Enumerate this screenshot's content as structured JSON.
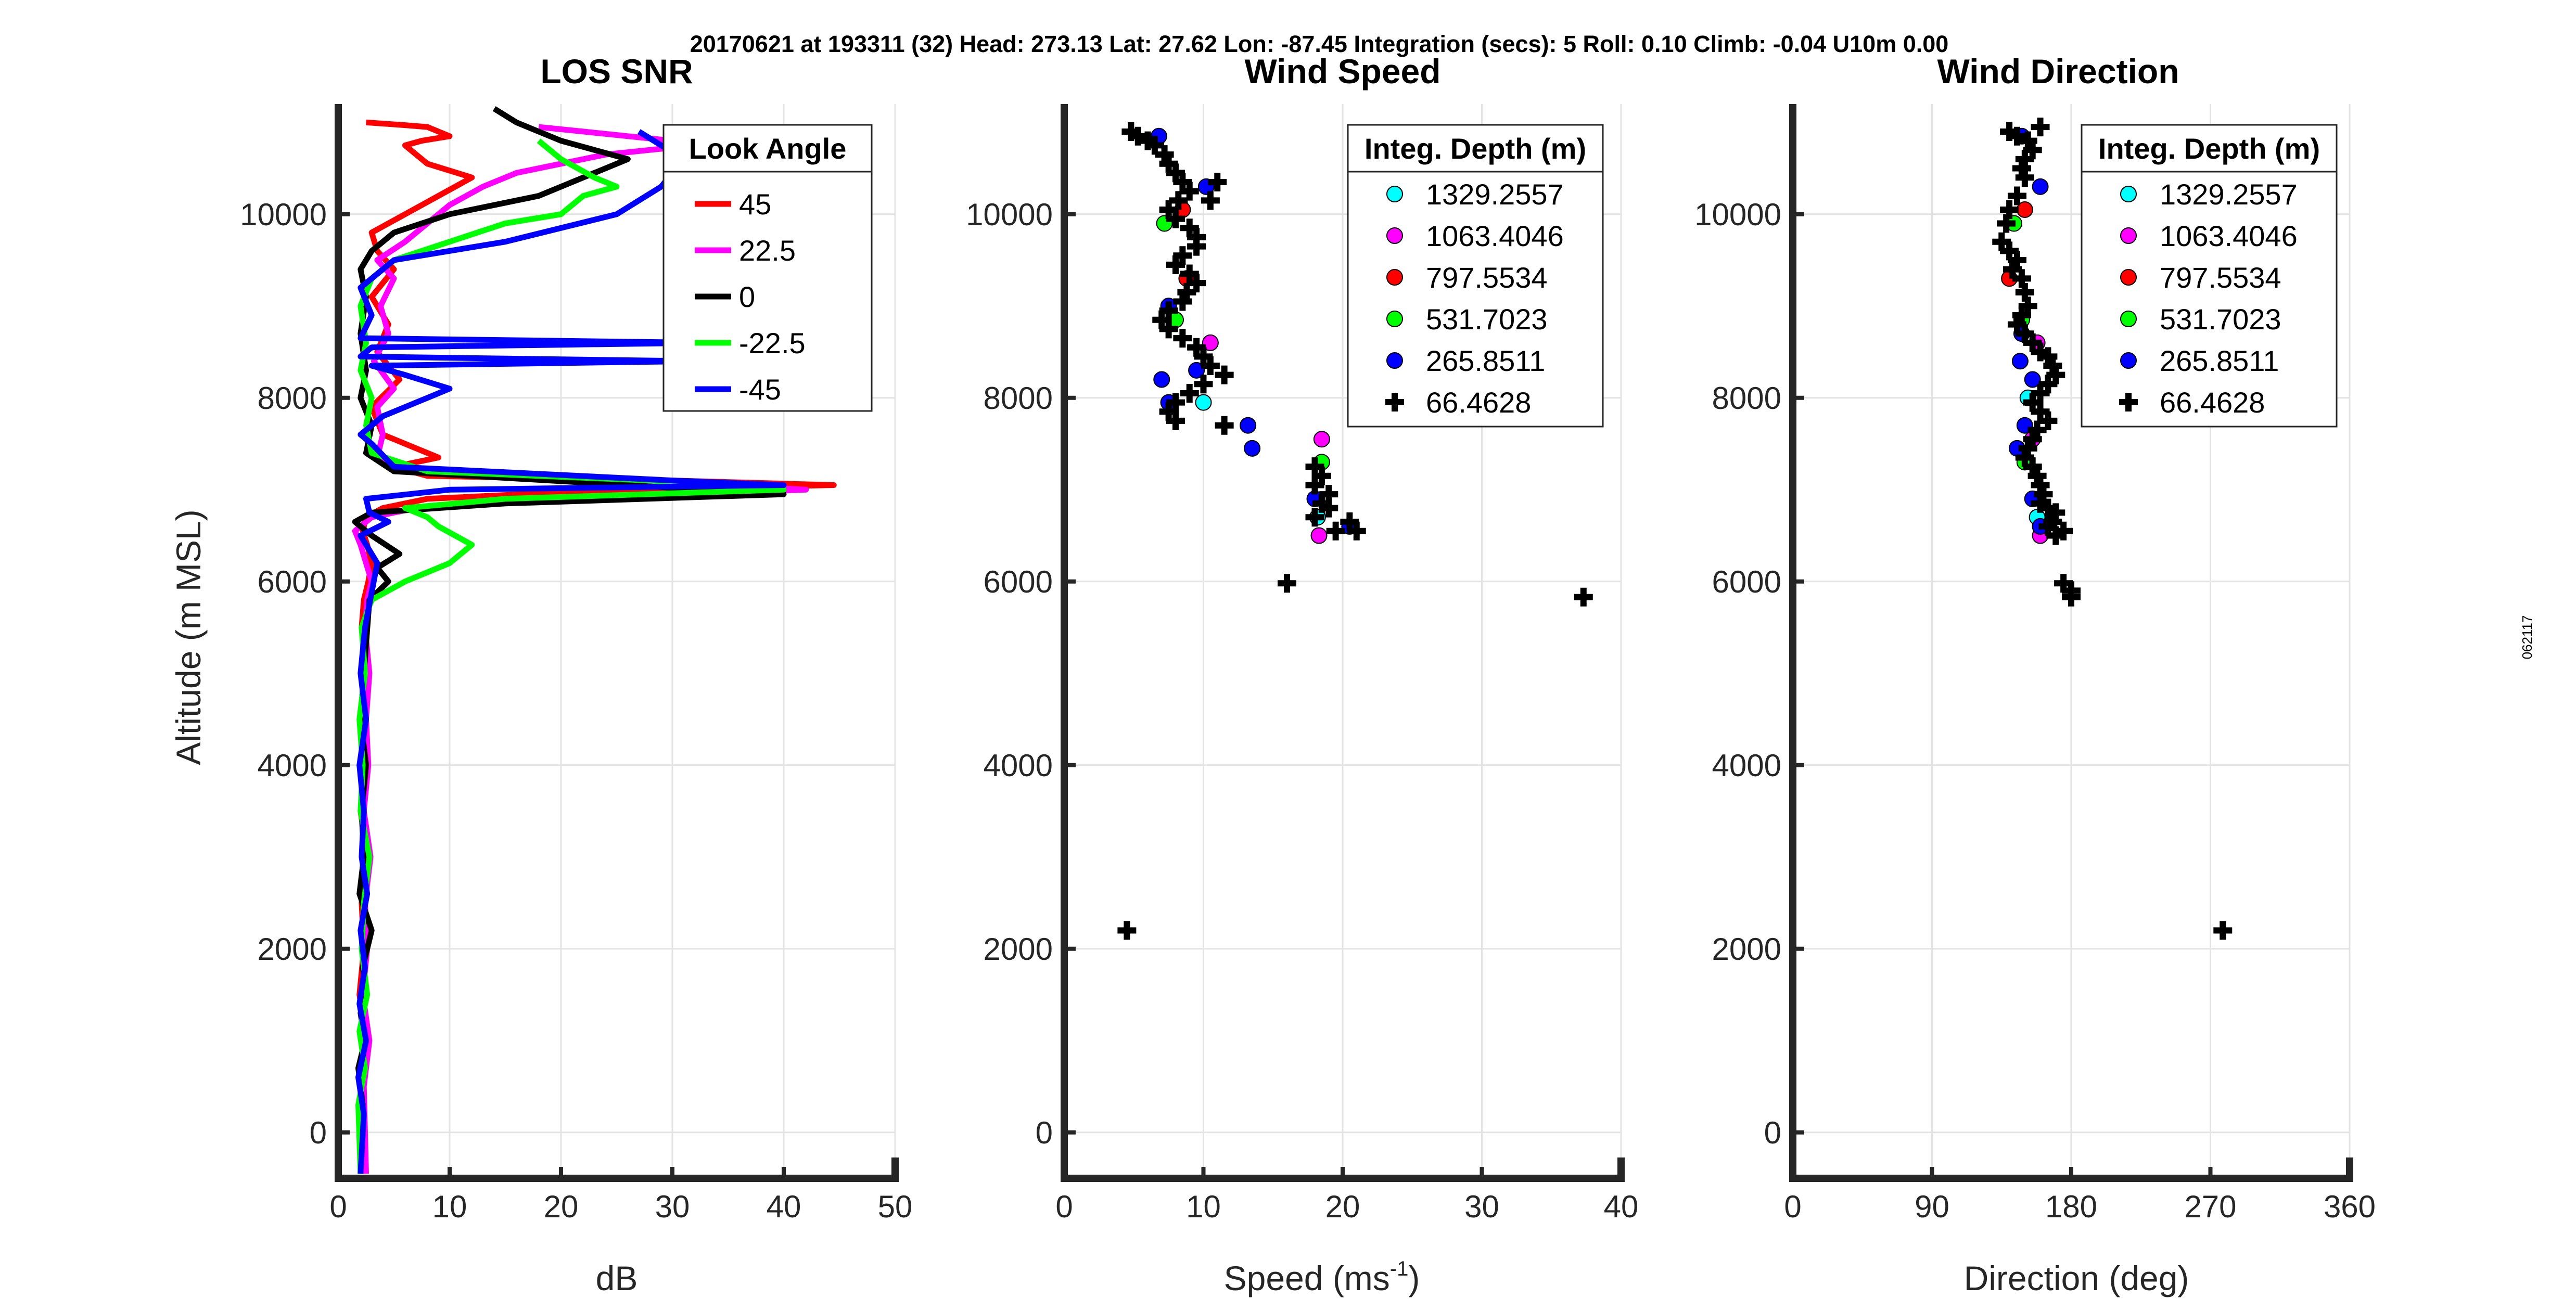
{
  "figure": {
    "header": "20170621 at 193311 (32)  Head: 273.13  Lat: 27.62  Lon: -87.45  Integration (secs): 5  Roll: 0.10  Climb: -0.04  U10m 0.00",
    "side_label": "062117"
  },
  "chart_data": [
    {
      "id": "snr",
      "type": "line",
      "title": "LOS SNR",
      "xlabel": "dB",
      "ylabel": "Altitude (m MSL)",
      "xlim": [
        0,
        50
      ],
      "ylim": [
        -500,
        11200
      ],
      "xticks": [
        0,
        10,
        20,
        30,
        40,
        50
      ],
      "yticks": [
        0,
        2000,
        4000,
        6000,
        8000,
        10000
      ],
      "grid": true,
      "legend": {
        "title": "Look Angle",
        "placement": "top-right"
      },
      "series": [
        {
          "name": "45",
          "color": "#ff0000",
          "x": [
            2.2,
            2.0,
            2.5,
            1.9,
            2.3,
            2.1,
            2.6,
            2.0,
            2.4,
            2.2,
            2.5,
            2.1,
            2.3,
            2.7,
            3.0,
            2.6,
            2.2,
            2.5,
            4.0,
            8.0,
            25.0,
            44.5,
            30.0,
            8.0,
            5.0,
            9.0,
            4.0,
            3.0,
            5.5,
            3.5,
            4.5,
            3.0,
            5.0,
            3.5,
            3.0,
            6.0,
            9.0,
            12.0,
            8.0,
            7.0,
            6.0,
            7.5,
            10.0,
            9.0,
            8.0,
            6.0,
            2.5
          ],
          "y": [
            -450,
            500,
            1000,
            1500,
            2000,
            2500,
            3000,
            3500,
            4000,
            4500,
            5000,
            5500,
            5800,
            6000,
            6200,
            6400,
            6550,
            6700,
            6800,
            6900,
            7000,
            7050,
            7100,
            7150,
            7250,
            7350,
            7600,
            7900,
            8200,
            8500,
            8800,
            9100,
            9400,
            9600,
            9800,
            10000,
            10200,
            10400,
            10550,
            10650,
            10750,
            10800,
            10850,
            10900,
            10950,
            10970,
            11000
          ]
        },
        {
          "name": "22.5",
          "color": "#ff00ff",
          "x": [
            2.5,
            2.3,
            2.8,
            2.2,
            2.6,
            2.4,
            2.9,
            2.3,
            2.7,
            2.5,
            2.8,
            2.4,
            2.6,
            3.0,
            2.5,
            2.0,
            1.5,
            3.0,
            7.0,
            20.0,
            42.0,
            28.0,
            6.0,
            3.5,
            4.0,
            3.5,
            5.0,
            3.2,
            4.5,
            3.8,
            5.0,
            3.5,
            6.0,
            8.0,
            10.0,
            13.0,
            16.0,
            20.0,
            24.0,
            28.0,
            32.0,
            30.0,
            26.0,
            22.0,
            18.0
          ],
          "y": [
            -450,
            500,
            1000,
            1500,
            2000,
            2500,
            3000,
            3500,
            4000,
            4500,
            5000,
            5500,
            5800,
            6000,
            6200,
            6400,
            6550,
            6700,
            6800,
            6900,
            7000,
            7100,
            7200,
            7350,
            7600,
            7900,
            8100,
            8400,
            8700,
            9000,
            9300,
            9500,
            9700,
            9900,
            10100,
            10300,
            10450,
            10550,
            10650,
            10700,
            10750,
            10800,
            10850,
            10900,
            10950
          ]
        },
        {
          "name": "0",
          "color": "#000000",
          "x": [
            2.0,
            2.2,
            1.8,
            2.4,
            2.0,
            2.6,
            2.2,
            3.0,
            1.9,
            2.3,
            2.1,
            2.5,
            2.0,
            2.3,
            2.8,
            4.5,
            3.5,
            5.5,
            3.0,
            1.5,
            3.0,
            15.0,
            40.0,
            26.0,
            5.0,
            2.5,
            3.0,
            2.0,
            2.5,
            2.0,
            2.5,
            2.0,
            3.0,
            5.0,
            10.0,
            18.0,
            22.0,
            26.0,
            20.0,
            16.0,
            14.0
          ],
          "y": [
            -450,
            300,
            700,
            1000,
            1300,
            1500,
            1800,
            2200,
            2600,
            3000,
            3500,
            4000,
            4500,
            5000,
            5800,
            6000,
            6150,
            6300,
            6500,
            6650,
            6750,
            6850,
            6950,
            7050,
            7200,
            7400,
            7700,
            8000,
            8300,
            8700,
            9100,
            9400,
            9600,
            9800,
            10000,
            10200,
            10400,
            10600,
            10800,
            11000,
            11150
          ]
        },
        {
          "name": "-22.5",
          "color": "#00ff00",
          "x": [
            2.0,
            1.8,
            2.4,
            1.9,
            2.6,
            2.1,
            2.3,
            2.8,
            2.0,
            2.2,
            1.9,
            2.4,
            2.1,
            3.0,
            6.0,
            10.0,
            12.0,
            9.0,
            8.0,
            6.0,
            15.0,
            40.0,
            28.0,
            8.0,
            3.0,
            2.5,
            3.0,
            2.0,
            2.5,
            2.0,
            3.0,
            5.0,
            10.0,
            15.0,
            20.0,
            22.0,
            25.0,
            23.0,
            20.0,
            18.0
          ],
          "y": [
            -450,
            300,
            700,
            1100,
            1500,
            2000,
            2500,
            3000,
            3500,
            4000,
            4500,
            5000,
            5500,
            5800,
            6000,
            6200,
            6400,
            6600,
            6700,
            6800,
            6900,
            7000,
            7100,
            7200,
            7400,
            7700,
            8000,
            8300,
            8600,
            9000,
            9300,
            9500,
            9700,
            9900,
            10000,
            10200,
            10300,
            10400,
            10600,
            10800
          ]
        },
        {
          "name": "-45",
          "color": "#0000ff",
          "x": [
            2.0,
            2.3,
            1.8,
            2.5,
            1.9,
            2.4,
            2.0,
            2.6,
            2.1,
            2.3,
            1.9,
            2.5,
            2.0,
            2.4,
            3.5,
            2.0,
            4.5,
            2.8,
            2.5,
            10.0,
            40.0,
            30.0,
            5.0,
            3.0,
            2.0,
            4.0,
            8.0,
            10.0,
            6.0,
            3.0,
            32.0,
            2.0,
            3.0,
            33.0,
            2.0,
            3.0,
            2.0,
            5.0,
            15.0,
            25.0,
            29.0,
            31.0,
            27.0
          ],
          "y": [
            -450,
            200,
            600,
            1000,
            1400,
            1800,
            2200,
            2600,
            3000,
            3500,
            4000,
            4500,
            5000,
            5500,
            6200,
            6500,
            6650,
            6750,
            6900,
            7000,
            7050,
            7100,
            7250,
            7500,
            7600,
            7800,
            8000,
            8100,
            8250,
            8350,
            8400,
            8450,
            8550,
            8600,
            8650,
            8900,
            9200,
            9500,
            9700,
            10000,
            10300,
            10600,
            10900
          ]
        }
      ]
    },
    {
      "id": "speed",
      "type": "scatter",
      "title": "Wind Speed",
      "xlabel": "Speed (ms",
      "xlabel_sup": "-1",
      "xlabel_close": ")",
      "ylabel": "",
      "xlim": [
        0,
        40
      ],
      "ylim": [
        -500,
        11200
      ],
      "xticks": [
        0,
        10,
        20,
        30,
        40
      ],
      "yticks": [
        0,
        2000,
        4000,
        6000,
        8000,
        10000
      ],
      "grid": true,
      "legend": {
        "title": "Integ. Depth (m)",
        "placement": "top-right"
      },
      "series": [
        {
          "name": "1329.2557",
          "color": "#00ffff",
          "marker": "circle",
          "x": [
            10.0,
            18.2
          ],
          "y": [
            7950,
            6700
          ]
        },
        {
          "name": "1063.4046",
          "color": "#ff00ff",
          "marker": "circle",
          "x": [
            18.5,
            18.3,
            10.5
          ],
          "y": [
            7550,
            6500,
            8600
          ]
        },
        {
          "name": "797.5534",
          "color": "#ff0000",
          "marker": "circle",
          "x": [
            8.5,
            8.8
          ],
          "y": [
            10050,
            9300
          ]
        },
        {
          "name": "531.7023",
          "color": "#00ff00",
          "marker": "circle",
          "x": [
            7.2,
            8.0,
            18.5
          ],
          "y": [
            9900,
            8850,
            7300
          ]
        },
        {
          "name": "265.8511",
          "color": "#0000ff",
          "marker": "circle",
          "x": [
            6.8,
            10.2,
            7.5,
            9.5,
            7.0,
            13.2,
            13.5,
            18.0,
            20.5,
            7.5
          ],
          "y": [
            10850,
            10300,
            9000,
            8300,
            8200,
            7700,
            7450,
            6900,
            6600,
            7950
          ]
        },
        {
          "name": "66.4628",
          "color": "#000000",
          "marker": "plus",
          "x": [
            4.8,
            5.3,
            6.0,
            6.5,
            7.2,
            7.5,
            8.0,
            8.5,
            9.0,
            8.2,
            7.5,
            8.0,
            9.0,
            9.5,
            11.0,
            10.5,
            9.5,
            8.5,
            8.0,
            9.0,
            9.5,
            8.8,
            8.5,
            7.5,
            7.0,
            7.5,
            8.5,
            9.5,
            10.0,
            10.5,
            11.5,
            10.0,
            9.0,
            8.0,
            7.5,
            8.0,
            11.5,
            18.0,
            18.5,
            18.0,
            19.0,
            18.5,
            19.0,
            18.0,
            20.5,
            21.0,
            19.5,
            16.0,
            37.3,
            4.5
          ],
          "y": [
            10900,
            10850,
            10800,
            10750,
            10650,
            10550,
            10450,
            10350,
            10250,
            10150,
            10050,
            9950,
            9850,
            9750,
            10350,
            10150,
            9650,
            9550,
            9450,
            9350,
            9250,
            9150,
            9050,
            8950,
            8850,
            8750,
            8650,
            8550,
            8450,
            8350,
            8250,
            8150,
            8050,
            7950,
            7850,
            7750,
            7700,
            7250,
            7150,
            7050,
            6950,
            6850,
            6800,
            6700,
            6650,
            6550,
            6550,
            5980,
            5830,
            2200
          ]
        }
      ]
    },
    {
      "id": "direction",
      "type": "scatter",
      "title": "Wind Direction",
      "xlabel": "Direction (deg)",
      "ylabel": "",
      "xlim": [
        0,
        360
      ],
      "ylim": [
        -500,
        11200
      ],
      "xticks": [
        0,
        90,
        180,
        270,
        360
      ],
      "yticks": [
        0,
        2000,
        4000,
        6000,
        8000,
        10000
      ],
      "grid": true,
      "legend": {
        "title": "Integ. Depth (m)",
        "placement": "top-right"
      },
      "series": [
        {
          "name": "1329.2557",
          "color": "#00ffff",
          "marker": "circle",
          "x": [
            158,
            152
          ],
          "y": [
            6700,
            8000
          ]
        },
        {
          "name": "1063.4046",
          "color": "#ff00ff",
          "marker": "circle",
          "x": [
            160,
            155,
            158
          ],
          "y": [
            6500,
            7550,
            8600
          ]
        },
        {
          "name": "797.5534",
          "color": "#ff0000",
          "marker": "circle",
          "x": [
            140,
            150
          ],
          "y": [
            9300,
            10050
          ]
        },
        {
          "name": "531.7023",
          "color": "#00ff00",
          "marker": "circle",
          "x": [
            143,
            148,
            150
          ],
          "y": [
            9900,
            8850,
            7300
          ]
        },
        {
          "name": "265.8511",
          "color": "#0000ff",
          "marker": "circle",
          "x": [
            148,
            160,
            147,
            155,
            145,
            150,
            148,
            155,
            160
          ],
          "y": [
            10850,
            10300,
            8400,
            8200,
            7450,
            7700,
            8700,
            6900,
            6600
          ]
        },
        {
          "name": "66.4628",
          "color": "#000000",
          "marker": "plus",
          "x": [
            140,
            145,
            152,
            160,
            155,
            150,
            148,
            150,
            145,
            140,
            138,
            135,
            140,
            145,
            142,
            148,
            150,
            152,
            148,
            145,
            150,
            155,
            160,
            165,
            168,
            170,
            165,
            160,
            155,
            160,
            165,
            158,
            155,
            152,
            150,
            155,
            158,
            160,
            162,
            160,
            165,
            170,
            168,
            165,
            170,
            175,
            175,
            180,
            180,
            278
          ],
          "y": [
            10900,
            10850,
            10800,
            10950,
            10700,
            10600,
            10500,
            10400,
            10200,
            10050,
            9900,
            9700,
            9600,
            9500,
            9400,
            9300,
            9150,
            9000,
            8900,
            8800,
            8700,
            8600,
            8500,
            8450,
            8350,
            8250,
            8150,
            8050,
            7950,
            7850,
            7750,
            7650,
            7550,
            7450,
            7350,
            7250,
            7150,
            7050,
            6950,
            6850,
            6800,
            6750,
            6650,
            6600,
            6500,
            6550,
            5980,
            5900,
            5830,
            2200
          ]
        }
      ]
    }
  ]
}
